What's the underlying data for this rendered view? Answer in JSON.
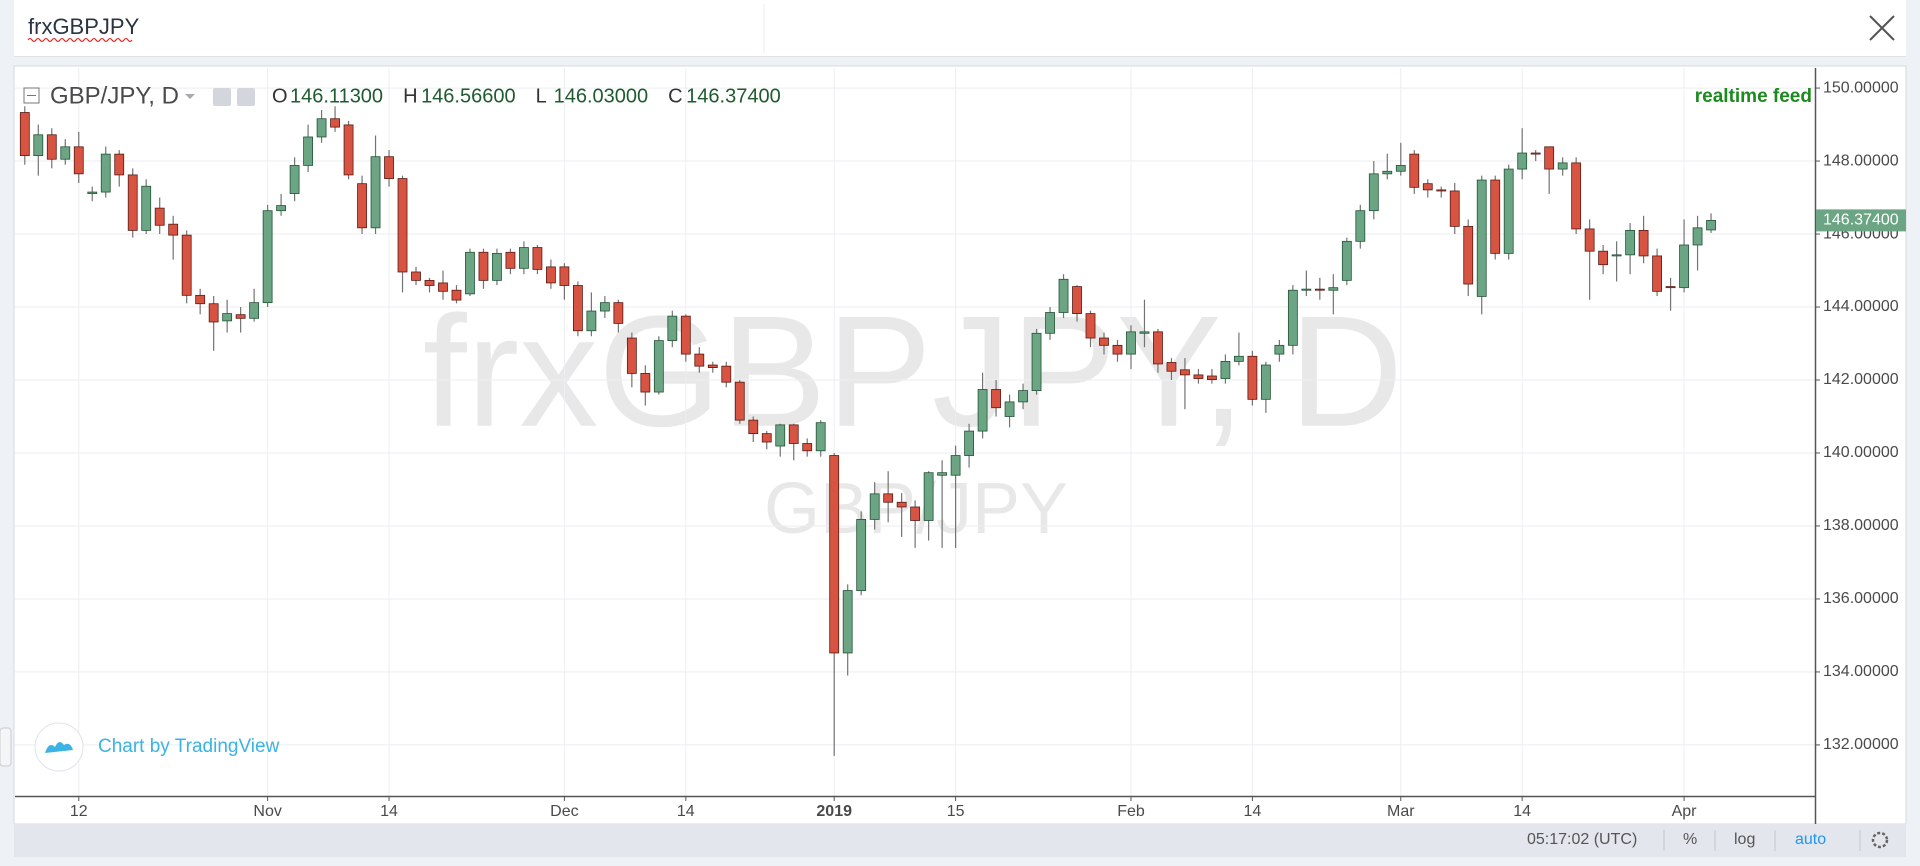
{
  "search": {
    "query": "frxGBPJPY"
  },
  "chart_data": {
    "type": "candlestick",
    "symbol": "GBP/JPY, D",
    "legend_ohlc": [
      {
        "key": "O",
        "value": "146.11300"
      },
      {
        "key": "H",
        "value": "146.56600"
      },
      {
        "key": "L",
        "value": "146.03000"
      },
      {
        "key": "C",
        "value": "146.37400"
      }
    ],
    "feed": "realtime feed",
    "watermark": "frxGBPJPY, D",
    "watermark_sub": "GBP/JPY",
    "credit": "Chart by TradingView",
    "price_tag": "146.37400",
    "up_color": "#6ba583",
    "down_color": "#d75442",
    "wick_color": "#737375",
    "grid": true,
    "ylim": [
      130.6,
      150.55
    ],
    "yticks": [
      {
        "value": 132,
        "label": "132.00000"
      },
      {
        "value": 134,
        "label": "134.00000"
      },
      {
        "value": 136,
        "label": "136.00000"
      },
      {
        "value": 138,
        "label": "138.00000"
      },
      {
        "value": 140,
        "label": "140.00000"
      },
      {
        "value": 142,
        "label": "142.00000"
      },
      {
        "value": 144,
        "label": "144.00000"
      },
      {
        "value": 146,
        "label": "146.00000"
      },
      {
        "value": 148,
        "label": "148.00000"
      },
      {
        "value": 150,
        "label": "150.00000"
      }
    ],
    "categories": [
      null,
      null,
      null,
      null,
      "12",
      null,
      null,
      null,
      null,
      null,
      null,
      null,
      null,
      null,
      null,
      null,
      null,
      null,
      "Nov",
      null,
      null,
      null,
      null,
      null,
      null,
      null,
      null,
      "14",
      null,
      null,
      null,
      null,
      null,
      null,
      null,
      null,
      null,
      null,
      null,
      null,
      "Dec",
      null,
      null,
      null,
      null,
      null,
      null,
      null,
      null,
      "14",
      null,
      null,
      null,
      null,
      null,
      null,
      null,
      null,
      null,
      null,
      "2019",
      null,
      null,
      null,
      null,
      null,
      null,
      null,
      null,
      "15",
      null,
      null,
      null,
      null,
      null,
      null,
      null,
      null,
      null,
      null,
      null,
      null,
      "Feb",
      null,
      null,
      null,
      null,
      null,
      null,
      null,
      null,
      "14",
      null,
      null,
      null,
      null,
      null,
      null,
      null,
      null,
      null,
      null,
      "Mar",
      null,
      null,
      null,
      null,
      null,
      null,
      null,
      null,
      "14",
      null,
      null,
      null,
      null,
      null,
      null,
      null,
      null,
      null,
      null,
      null,
      "Apr",
      null,
      null
    ],
    "series": [
      {
        "name": "GBP/JPY",
        "open": [
          149.33,
          148.15,
          148.72,
          148.05,
          148.39,
          147.11,
          147.15,
          148.19,
          147.62,
          146.1,
          146.71,
          146.27,
          145.97,
          144.32,
          144.09,
          143.62,
          143.79,
          143.69,
          144.12,
          146.64,
          147.11,
          147.88,
          148.66,
          149.16,
          148.99,
          147.38,
          146.17,
          148.12,
          147.52,
          144.96,
          144.73,
          144.66,
          144.46,
          144.36,
          145.5,
          144.73,
          145.5,
          145.06,
          145.63,
          145.1,
          145.1,
          144.59,
          143.35,
          143.89,
          144.12,
          143.15,
          142.18,
          141.67,
          143.08,
          143.75,
          142.71,
          142.41,
          142.38,
          141.94,
          140.9,
          140.53,
          140.19,
          140.77,
          140.26,
          140.06,
          139.93,
          134.52,
          136.23,
          138.18,
          138.88,
          138.65,
          138.52,
          138.15,
          139.39,
          139.39,
          139.93,
          140.6,
          141.74,
          141.0,
          141.4,
          141.71,
          143.28,
          143.85,
          144.56,
          143.82,
          143.15,
          142.95,
          142.71,
          143.28,
          143.32,
          142.48,
          142.28,
          142.14,
          142.11,
          142.04,
          142.51,
          142.65,
          141.47,
          142.71,
          142.95,
          144.46,
          144.49,
          144.46,
          144.73,
          145.8,
          146.64,
          147.65,
          147.72,
          148.19,
          147.38,
          147.21,
          147.18,
          146.21,
          144.29,
          147.48,
          145.47,
          147.78,
          148.22,
          148.39,
          147.78,
          147.95,
          146.14,
          145.53,
          145.4,
          145.43,
          146.1,
          145.4,
          144.56,
          144.53,
          145.7,
          146.113
        ],
        "high": [
          149.5,
          149.0,
          148.9,
          148.6,
          148.8,
          147.3,
          148.4,
          148.3,
          147.8,
          147.5,
          147.0,
          146.5,
          146.1,
          144.5,
          144.3,
          144.2,
          144.0,
          144.5,
          146.8,
          147.1,
          148.1,
          149.0,
          149.4,
          149.5,
          149.1,
          147.6,
          148.7,
          148.3,
          147.6,
          145.1,
          144.8,
          145.0,
          144.6,
          145.6,
          145.6,
          145.6,
          145.6,
          145.8,
          145.7,
          145.3,
          145.2,
          144.7,
          144.4,
          144.3,
          144.2,
          143.3,
          142.4,
          143.2,
          143.9,
          143.8,
          142.9,
          142.5,
          142.5,
          142.0,
          141.0,
          140.6,
          140.8,
          140.8,
          140.4,
          140.9,
          140.0,
          136.4,
          138.4,
          139.2,
          139.5,
          138.9,
          138.7,
          139.5,
          139.8,
          140.2,
          140.8,
          142.2,
          142.0,
          141.6,
          141.9,
          143.4,
          144.0,
          144.9,
          144.6,
          143.9,
          143.3,
          143.1,
          143.5,
          144.2,
          143.4,
          142.6,
          142.6,
          142.3,
          142.3,
          142.7,
          143.3,
          142.8,
          142.5,
          143.1,
          144.6,
          145.0,
          144.8,
          144.9,
          145.9,
          146.8,
          148.0,
          148.2,
          148.5,
          148.3,
          147.5,
          147.3,
          147.4,
          146.4,
          147.6,
          147.6,
          147.9,
          148.9,
          148.3,
          148.4,
          148.1,
          148.1,
          146.4,
          145.7,
          145.8,
          146.3,
          146.5,
          145.6,
          144.8,
          146.4,
          146.5,
          146.566
        ],
        "low": [
          147.9,
          147.6,
          147.8,
          147.9,
          147.4,
          146.9,
          147.0,
          147.3,
          145.9,
          146.0,
          146.0,
          145.3,
          144.1,
          143.8,
          142.8,
          143.3,
          143.3,
          143.6,
          144.0,
          146.5,
          146.9,
          147.7,
          148.5,
          148.8,
          147.5,
          146.0,
          146.0,
          147.3,
          144.4,
          144.6,
          144.4,
          144.2,
          144.1,
          144.3,
          144.5,
          144.6,
          144.9,
          144.9,
          144.9,
          144.5,
          144.2,
          143.2,
          143.2,
          143.7,
          143.3,
          141.8,
          141.3,
          141.6,
          142.9,
          142.5,
          142.2,
          142.2,
          141.8,
          140.8,
          140.3,
          140.1,
          139.9,
          139.8,
          139.9,
          139.9,
          131.7,
          133.9,
          136.1,
          137.9,
          138.1,
          137.7,
          137.4,
          137.6,
          137.4,
          137.4,
          139.6,
          140.4,
          141.0,
          140.7,
          141.2,
          141.6,
          143.1,
          143.7,
          143.6,
          142.9,
          142.7,
          142.5,
          142.3,
          142.9,
          142.2,
          142.0,
          141.2,
          141.9,
          141.9,
          141.9,
          142.4,
          141.3,
          141.1,
          142.5,
          142.7,
          144.3,
          144.2,
          143.8,
          144.6,
          145.6,
          146.4,
          147.5,
          147.6,
          147.1,
          147.0,
          147.0,
          146.0,
          144.3,
          143.8,
          145.3,
          145.3,
          147.5,
          148.0,
          147.1,
          147.6,
          146.0,
          144.2,
          144.9,
          144.7,
          144.9,
          145.2,
          144.3,
          143.9,
          144.4,
          145.0,
          146.03
        ],
        "close": [
          148.15,
          148.72,
          148.05,
          148.39,
          147.65,
          147.15,
          148.19,
          147.62,
          146.1,
          147.31,
          146.24,
          145.97,
          144.32,
          144.09,
          143.59,
          143.82,
          143.69,
          144.12,
          146.64,
          146.78,
          147.88,
          148.66,
          149.16,
          148.93,
          147.62,
          146.17,
          148.12,
          147.52,
          144.96,
          144.73,
          144.59,
          144.43,
          144.19,
          145.5,
          144.73,
          145.47,
          145.06,
          145.63,
          145.03,
          144.66,
          144.59,
          143.35,
          143.89,
          144.12,
          143.55,
          142.18,
          141.67,
          143.08,
          143.75,
          142.71,
          142.38,
          142.34,
          141.94,
          140.9,
          140.53,
          140.3,
          140.77,
          140.26,
          140.06,
          140.83,
          134.52,
          136.23,
          138.18,
          138.88,
          138.65,
          138.52,
          138.15,
          139.46,
          139.46,
          139.93,
          140.6,
          141.74,
          141.24,
          141.4,
          141.71,
          143.28,
          143.85,
          144.76,
          143.82,
          143.15,
          142.95,
          142.71,
          143.32,
          143.32,
          142.44,
          142.24,
          142.14,
          142.04,
          142.01,
          142.51,
          142.65,
          141.47,
          142.41,
          142.95,
          144.46,
          144.49,
          144.46,
          144.53,
          145.8,
          146.64,
          147.65,
          147.72,
          147.88,
          147.28,
          147.21,
          147.18,
          146.21,
          144.63,
          147.48,
          145.47,
          147.78,
          148.22,
          148.19,
          147.78,
          147.95,
          146.14,
          145.53,
          145.16,
          145.43,
          146.1,
          145.4,
          144.43,
          144.53,
          145.7,
          146.17,
          146.374
        ]
      }
    ]
  },
  "toolbar": {
    "time": "05:17:02 (UTC)",
    "percent": "%",
    "log": "log",
    "auto": "auto"
  }
}
